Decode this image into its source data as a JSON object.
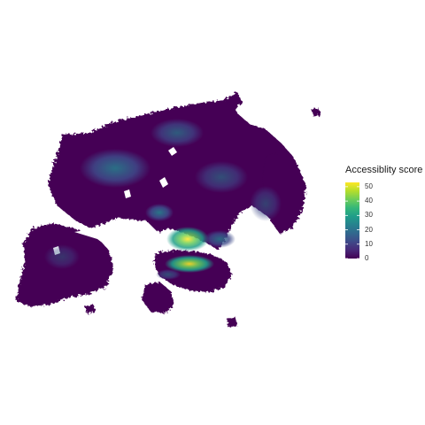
{
  "legend": {
    "title": "Accessiblity score",
    "ticks": [
      {
        "value": 50,
        "label": "50"
      },
      {
        "value": 40,
        "label": "40"
      },
      {
        "value": 30,
        "label": "30"
      },
      {
        "value": 20,
        "label": "20"
      },
      {
        "value": 10,
        "label": "10"
      },
      {
        "value": 0,
        "label": "0"
      }
    ],
    "range": [
      0,
      53
    ],
    "colorscale": "viridis",
    "stops": [
      "#440154",
      "#482878",
      "#3e4a89",
      "#31688e",
      "#26828e",
      "#1f9e89",
      "#35b779",
      "#6ece58",
      "#b5de2b",
      "#fde725"
    ]
  },
  "map": {
    "type": "raster heat map",
    "background_color": "#ffffff",
    "base_color": "#440154",
    "high_value_color": "#fde725",
    "low_cell_color": "#481b6d"
  }
}
